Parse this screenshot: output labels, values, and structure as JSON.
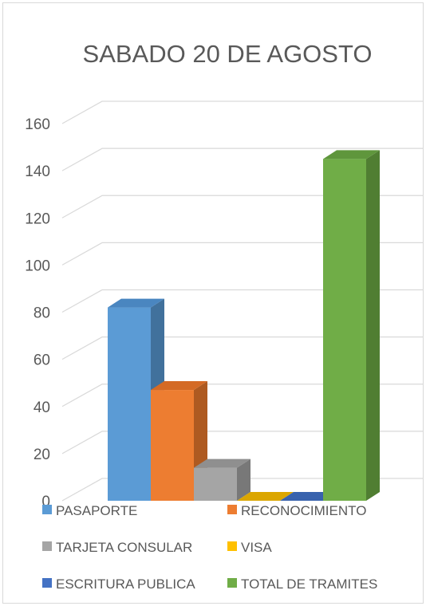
{
  "chart_data": {
    "type": "bar",
    "title": "SABADO 20 DE AGOSTO",
    "categories": [
      "PASAPORTE",
      "RECONOCIMIENTO",
      "TARJETA CONSULAR",
      "VISA",
      "ESCRITURA PUBLICA",
      "TOTAL DE TRAMITES"
    ],
    "values": [
      82,
      47,
      14,
      0,
      0,
      145
    ],
    "colors": {
      "front": [
        "#5b9bd5",
        "#ed7d31",
        "#a5a5a5",
        "#ffc000",
        "#4472c4",
        "#70ad47"
      ],
      "side": [
        "#41719c",
        "#ae5a21",
        "#787878",
        "#bc8c00",
        "#2f5597",
        "#507e32"
      ],
      "top": [
        "#4a86c0",
        "#d46a25",
        "#8f8f8f",
        "#dba600",
        "#3862ad",
        "#5f963c"
      ]
    },
    "yticks": [
      0,
      20,
      40,
      60,
      80,
      100,
      120,
      140,
      160
    ],
    "ylim": [
      0,
      160
    ],
    "view": "3d-clustered-columns",
    "grid": true,
    "legend_position": "bottom",
    "xlabel": "",
    "ylabel": ""
  }
}
